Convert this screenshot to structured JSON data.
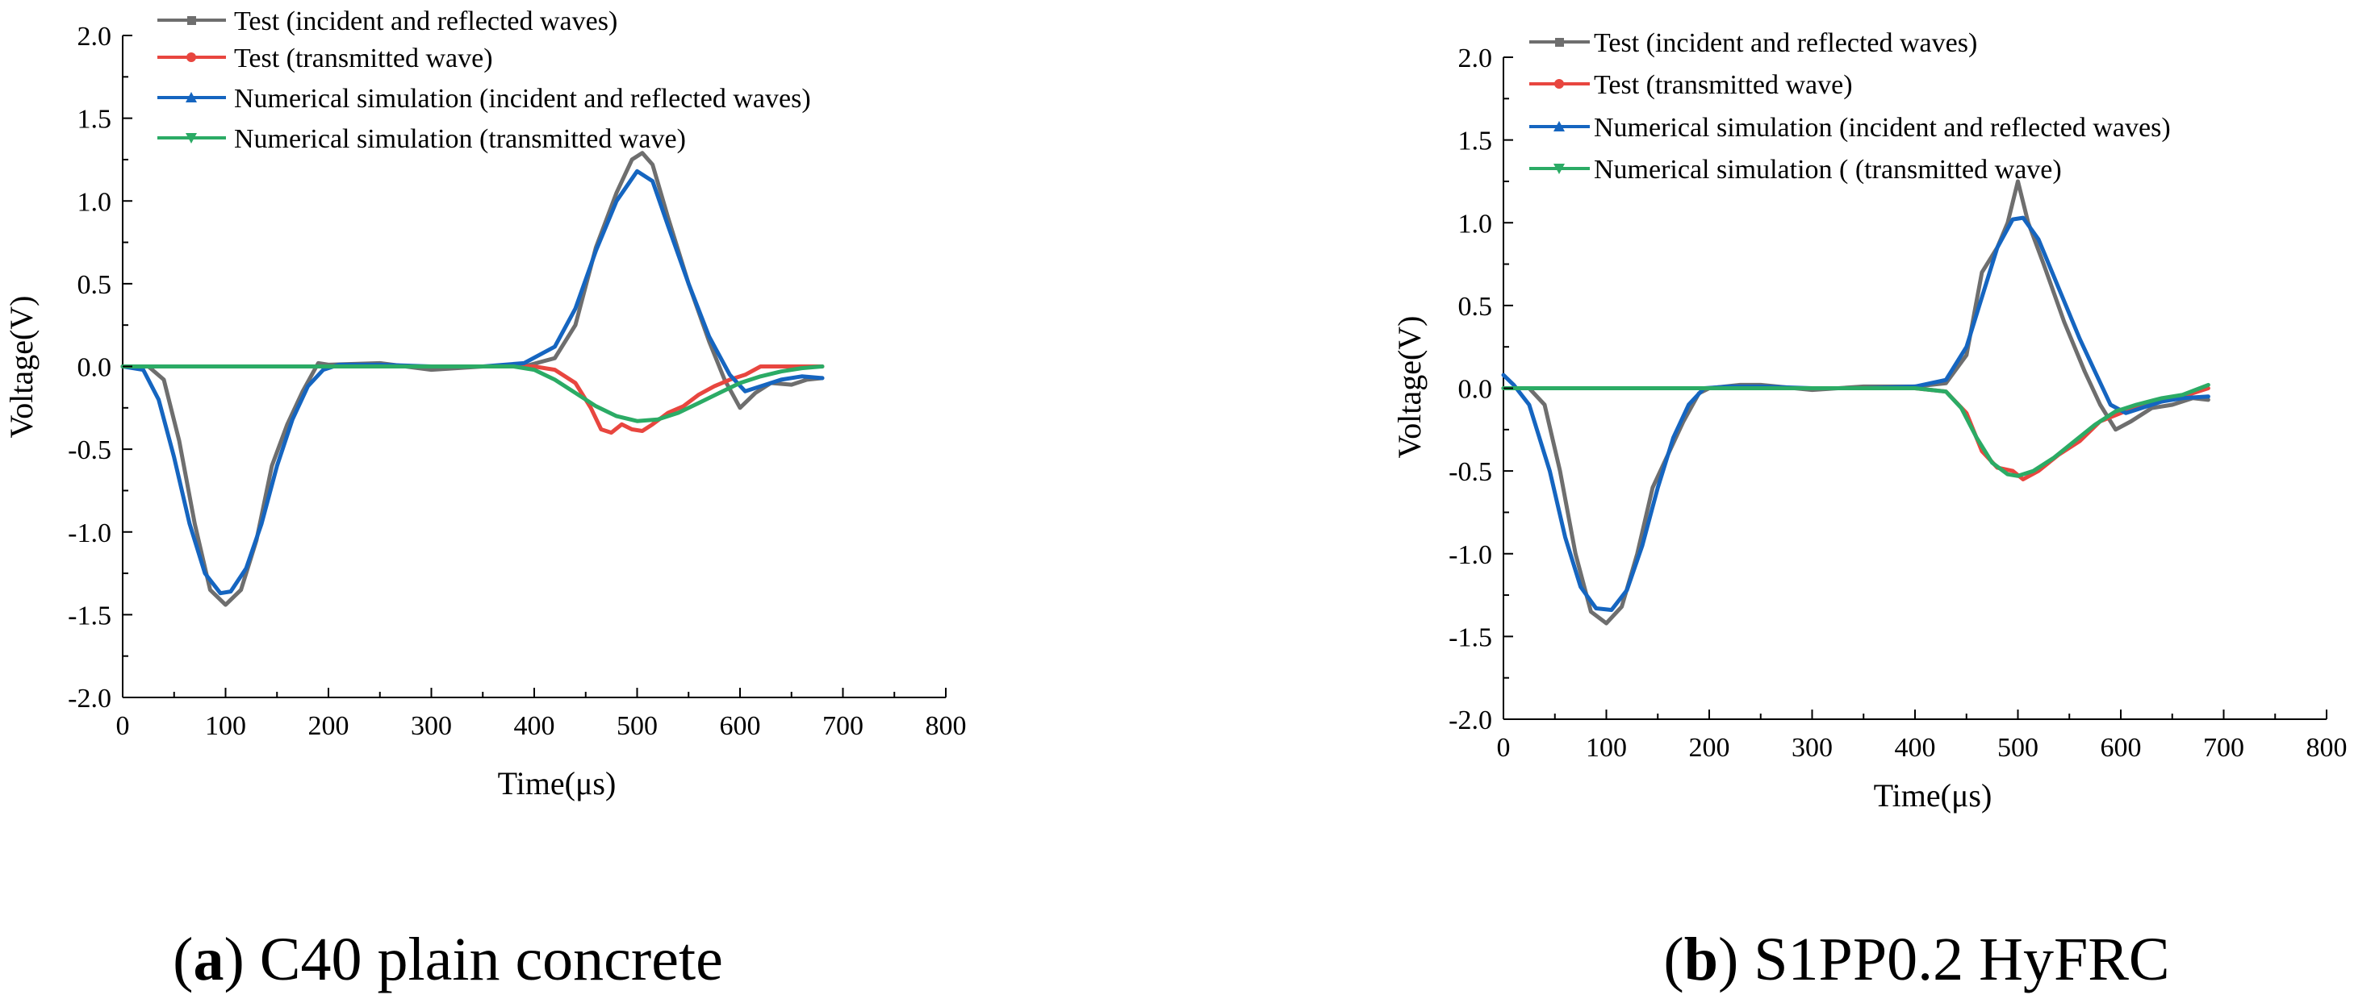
{
  "chart_data": [
    {
      "type": "line",
      "caption": {
        "letter": "a",
        "text": "C40 plain concrete"
      },
      "xlabel": "Time(μs)",
      "ylabel": "Voltage(V)",
      "xlim": [
        0,
        800
      ],
      "ylim": [
        -2.0,
        2.0
      ],
      "xticks": [
        "0",
        "100",
        "200",
        "300",
        "400",
        "500",
        "600",
        "700",
        "800"
      ],
      "yticks": [
        "2.0",
        "1.5",
        "1.0",
        "0.5",
        "0.0",
        "-0.5",
        "-1.0",
        "-1.5",
        "-2.0"
      ],
      "series": [
        {
          "name": "Test (incident and reflected waves)",
          "color": "#6e6e6e",
          "marker": "square",
          "points": [
            [
              0,
              0
            ],
            [
              25,
              0
            ],
            [
              40,
              -0.08
            ],
            [
              55,
              -0.45
            ],
            [
              70,
              -0.95
            ],
            [
              85,
              -1.35
            ],
            [
              100,
              -1.44
            ],
            [
              115,
              -1.35
            ],
            [
              130,
              -1.05
            ],
            [
              145,
              -0.6
            ],
            [
              160,
              -0.35
            ],
            [
              175,
              -0.15
            ],
            [
              190,
              0.02
            ],
            [
              200,
              0.01
            ],
            [
              250,
              0.02
            ],
            [
              300,
              -0.02
            ],
            [
              350,
              0.0
            ],
            [
              390,
              0.0
            ],
            [
              420,
              0.05
            ],
            [
              440,
              0.25
            ],
            [
              460,
              0.72
            ],
            [
              480,
              1.05
            ],
            [
              495,
              1.25
            ],
            [
              505,
              1.29
            ],
            [
              515,
              1.22
            ],
            [
              530,
              0.9
            ],
            [
              550,
              0.5
            ],
            [
              570,
              0.15
            ],
            [
              585,
              -0.08
            ],
            [
              600,
              -0.25
            ],
            [
              615,
              -0.16
            ],
            [
              630,
              -0.1
            ],
            [
              650,
              -0.11
            ],
            [
              665,
              -0.08
            ],
            [
              680,
              -0.07
            ]
          ]
        },
        {
          "name": "Test (transmitted wave)",
          "color": "#e8463f",
          "marker": "circle",
          "points": [
            [
              0,
              0
            ],
            [
              100,
              0
            ],
            [
              200,
              0
            ],
            [
              300,
              0
            ],
            [
              400,
              0
            ],
            [
              420,
              -0.02
            ],
            [
              440,
              -0.1
            ],
            [
              455,
              -0.25
            ],
            [
              465,
              -0.38
            ],
            [
              475,
              -0.4
            ],
            [
              485,
              -0.35
            ],
            [
              495,
              -0.38
            ],
            [
              505,
              -0.39
            ],
            [
              515,
              -0.35
            ],
            [
              530,
              -0.28
            ],
            [
              545,
              -0.24
            ],
            [
              560,
              -0.17
            ],
            [
              575,
              -0.12
            ],
            [
              590,
              -0.08
            ],
            [
              605,
              -0.05
            ],
            [
              620,
              0.0
            ],
            [
              640,
              0.0
            ],
            [
              660,
              0.0
            ],
            [
              680,
              0.0
            ]
          ]
        },
        {
          "name": "Numerical simulation (incident and reflected waves)",
          "color": "#1565c0",
          "marker": "triangle-up",
          "points": [
            [
              0,
              0
            ],
            [
              20,
              -0.02
            ],
            [
              35,
              -0.2
            ],
            [
              50,
              -0.55
            ],
            [
              65,
              -0.95
            ],
            [
              80,
              -1.25
            ],
            [
              95,
              -1.37
            ],
            [
              105,
              -1.36
            ],
            [
              120,
              -1.22
            ],
            [
              135,
              -0.95
            ],
            [
              150,
              -0.6
            ],
            [
              165,
              -0.32
            ],
            [
              180,
              -0.12
            ],
            [
              195,
              -0.02
            ],
            [
              210,
              0.01
            ],
            [
              250,
              0.01
            ],
            [
              300,
              0.0
            ],
            [
              350,
              0.0
            ],
            [
              390,
              0.02
            ],
            [
              420,
              0.12
            ],
            [
              440,
              0.35
            ],
            [
              460,
              0.7
            ],
            [
              480,
              1.0
            ],
            [
              500,
              1.18
            ],
            [
              515,
              1.12
            ],
            [
              530,
              0.85
            ],
            [
              550,
              0.5
            ],
            [
              570,
              0.18
            ],
            [
              590,
              -0.05
            ],
            [
              605,
              -0.15
            ],
            [
              620,
              -0.12
            ],
            [
              640,
              -0.08
            ],
            [
              660,
              -0.06
            ],
            [
              680,
              -0.07
            ]
          ]
        },
        {
          "name": "Numerical simulation (transmitted wave)",
          "color": "#2bab65",
          "marker": "triangle-down",
          "points": [
            [
              0,
              0
            ],
            [
              100,
              0
            ],
            [
              200,
              0
            ],
            [
              300,
              0
            ],
            [
              380,
              0
            ],
            [
              400,
              -0.02
            ],
            [
              420,
              -0.08
            ],
            [
              440,
              -0.16
            ],
            [
              460,
              -0.24
            ],
            [
              480,
              -0.3
            ],
            [
              500,
              -0.33
            ],
            [
              520,
              -0.32
            ],
            [
              540,
              -0.28
            ],
            [
              560,
              -0.22
            ],
            [
              580,
              -0.16
            ],
            [
              600,
              -0.1
            ],
            [
              620,
              -0.06
            ],
            [
              640,
              -0.03
            ],
            [
              660,
              -0.01
            ],
            [
              680,
              0.0
            ]
          ]
        }
      ]
    },
    {
      "type": "line",
      "caption": {
        "letter": "b",
        "text": "S1PP0.2 HyFRC"
      },
      "xlabel": "Time(μs)",
      "ylabel": "Voltage(V)",
      "xlim": [
        0,
        800
      ],
      "ylim": [
        -2.0,
        2.0
      ],
      "xticks": [
        "0",
        "100",
        "200",
        "300",
        "400",
        "500",
        "600",
        "700",
        "800"
      ],
      "yticks": [
        "2.0",
        "1.5",
        "1.0",
        "0.5",
        "0.0",
        "-0.5",
        "-1.0",
        "-1.5",
        "-2.0"
      ],
      "series": [
        {
          "name": "Test (incident and reflected waves)",
          "color": "#6e6e6e",
          "marker": "square",
          "points": [
            [
              0,
              0
            ],
            [
              25,
              0
            ],
            [
              40,
              -0.1
            ],
            [
              55,
              -0.5
            ],
            [
              70,
              -1.0
            ],
            [
              85,
              -1.35
            ],
            [
              100,
              -1.42
            ],
            [
              115,
              -1.32
            ],
            [
              130,
              -1.0
            ],
            [
              145,
              -0.6
            ],
            [
              160,
              -0.4
            ],
            [
              175,
              -0.2
            ],
            [
              190,
              -0.03
            ],
            [
              200,
              0.0
            ],
            [
              230,
              0.02
            ],
            [
              250,
              0.02
            ],
            [
              300,
              -0.01
            ],
            [
              350,
              0.01
            ],
            [
              400,
              0.01
            ],
            [
              430,
              0.03
            ],
            [
              450,
              0.2
            ],
            [
              465,
              0.7
            ],
            [
              480,
              0.85
            ],
            [
              490,
              1.0
            ],
            [
              500,
              1.25
            ],
            [
              510,
              1.0
            ],
            [
              525,
              0.75
            ],
            [
              545,
              0.4
            ],
            [
              565,
              0.1
            ],
            [
              580,
              -0.1
            ],
            [
              595,
              -0.25
            ],
            [
              610,
              -0.2
            ],
            [
              630,
              -0.12
            ],
            [
              650,
              -0.1
            ],
            [
              670,
              -0.06
            ],
            [
              685,
              -0.07
            ]
          ]
        },
        {
          "name": "Test (transmitted wave)",
          "color": "#e8463f",
          "marker": "circle",
          "points": [
            [
              0,
              0
            ],
            [
              100,
              0
            ],
            [
              200,
              0
            ],
            [
              300,
              0
            ],
            [
              400,
              0
            ],
            [
              430,
              -0.02
            ],
            [
              450,
              -0.15
            ],
            [
              465,
              -0.38
            ],
            [
              480,
              -0.48
            ],
            [
              495,
              -0.5
            ],
            [
              505,
              -0.55
            ],
            [
              520,
              -0.5
            ],
            [
              540,
              -0.4
            ],
            [
              560,
              -0.32
            ],
            [
              580,
              -0.2
            ],
            [
              600,
              -0.15
            ],
            [
              620,
              -0.1
            ],
            [
              640,
              -0.08
            ],
            [
              660,
              -0.05
            ],
            [
              685,
              0.0
            ]
          ]
        },
        {
          "name": "Numerical simulation (incident and reflected waves)",
          "color": "#1565c0",
          "marker": "triangle-up",
          "points": [
            [
              0,
              0.08
            ],
            [
              10,
              0.02
            ],
            [
              25,
              -0.1
            ],
            [
              45,
              -0.5
            ],
            [
              60,
              -0.9
            ],
            [
              75,
              -1.2
            ],
            [
              90,
              -1.33
            ],
            [
              105,
              -1.34
            ],
            [
              120,
              -1.22
            ],
            [
              135,
              -0.95
            ],
            [
              150,
              -0.6
            ],
            [
              165,
              -0.3
            ],
            [
              180,
              -0.1
            ],
            [
              195,
              0.0
            ],
            [
              220,
              0.01
            ],
            [
              250,
              0.01
            ],
            [
              300,
              0.0
            ],
            [
              350,
              0.0
            ],
            [
              400,
              0.01
            ],
            [
              430,
              0.05
            ],
            [
              450,
              0.25
            ],
            [
              465,
              0.55
            ],
            [
              480,
              0.85
            ],
            [
              495,
              1.02
            ],
            [
              505,
              1.03
            ],
            [
              520,
              0.9
            ],
            [
              540,
              0.6
            ],
            [
              560,
              0.3
            ],
            [
              575,
              0.1
            ],
            [
              590,
              -0.1
            ],
            [
              605,
              -0.15
            ],
            [
              620,
              -0.12
            ],
            [
              640,
              -0.08
            ],
            [
              660,
              -0.06
            ],
            [
              685,
              -0.05
            ]
          ]
        },
        {
          "name": "Numerical simulation ( (transmitted wave)",
          "color": "#2bab65",
          "marker": "triangle-down",
          "points": [
            [
              0,
              0
            ],
            [
              100,
              0
            ],
            [
              200,
              0
            ],
            [
              300,
              0
            ],
            [
              400,
              0
            ],
            [
              430,
              -0.02
            ],
            [
              445,
              -0.12
            ],
            [
              460,
              -0.3
            ],
            [
              475,
              -0.45
            ],
            [
              490,
              -0.52
            ],
            [
              500,
              -0.53
            ],
            [
              515,
              -0.5
            ],
            [
              535,
              -0.42
            ],
            [
              555,
              -0.32
            ],
            [
              575,
              -0.22
            ],
            [
              595,
              -0.14
            ],
            [
              615,
              -0.1
            ],
            [
              640,
              -0.06
            ],
            [
              660,
              -0.04
            ],
            [
              685,
              0.02
            ]
          ]
        }
      ]
    }
  ]
}
